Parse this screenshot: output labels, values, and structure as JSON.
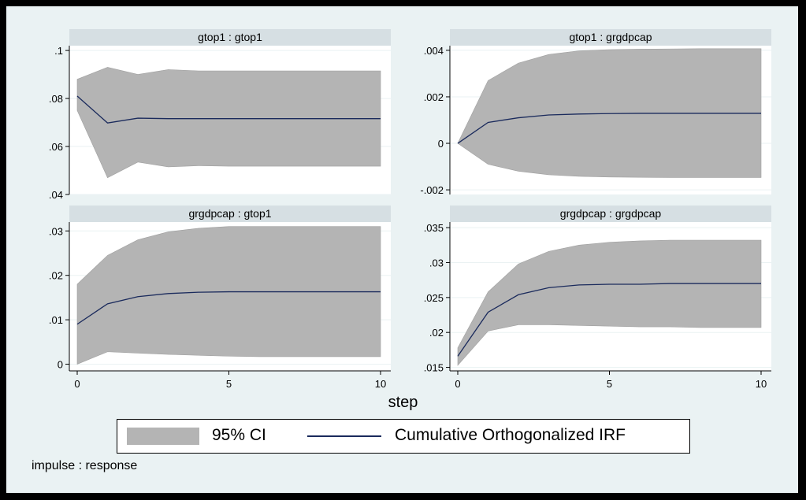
{
  "chart_data": [
    {
      "type": "area",
      "title": "gtop1 : gtop1",
      "x": [
        0,
        1,
        2,
        3,
        4,
        5,
        6,
        7,
        8,
        9,
        10
      ],
      "xticks": [
        0,
        5,
        10
      ],
      "xtick_labels": [
        "0",
        "5",
        "10"
      ],
      "ylim": [
        0.04,
        0.102
      ],
      "yticks": [
        0.04,
        0.06,
        0.08,
        0.1
      ],
      "ytick_labels": [
        ".04",
        ".06",
        ".08",
        ".1"
      ],
      "series": [
        {
          "name": "95% CI upper",
          "values": [
            0.088,
            0.093,
            0.09,
            0.092,
            0.0915,
            0.0915,
            0.0915,
            0.0915,
            0.0915,
            0.0915,
            0.0915
          ]
        },
        {
          "name": "95% CI lower",
          "values": [
            0.075,
            0.047,
            0.0535,
            0.0515,
            0.052,
            0.0518,
            0.0518,
            0.0518,
            0.0518,
            0.0518,
            0.0518
          ]
        },
        {
          "name": "Cumulative Orthogonalized IRF",
          "values": [
            0.081,
            0.0698,
            0.0718,
            0.0716,
            0.0716,
            0.0716,
            0.0716,
            0.0716,
            0.0716,
            0.0716,
            0.0716
          ]
        }
      ]
    },
    {
      "type": "area",
      "title": "gtop1 : grgdpcap",
      "x": [
        0,
        1,
        2,
        3,
        4,
        5,
        6,
        7,
        8,
        9,
        10
      ],
      "xticks": [
        0,
        5,
        10
      ],
      "xtick_labels": [
        "0",
        "5",
        "10"
      ],
      "ylim": [
        -0.0022,
        0.0042
      ],
      "yticks": [
        -0.002,
        0,
        0.002,
        0.004
      ],
      "ytick_labels": [
        "-.002",
        "0",
        ".002",
        ".004"
      ],
      "series": [
        {
          "name": "95% CI upper",
          "values": [
            0,
            0.0027,
            0.00345,
            0.00382,
            0.00398,
            0.00403,
            0.00405,
            0.00406,
            0.00407,
            0.00407,
            0.00407
          ]
        },
        {
          "name": "95% CI lower",
          "values": [
            0,
            -0.0009,
            -0.0012,
            -0.00135,
            -0.00142,
            -0.00145,
            -0.00146,
            -0.00147,
            -0.00147,
            -0.00147,
            -0.00147
          ]
        },
        {
          "name": "Cumulative Orthogonalized IRF",
          "values": [
            0,
            0.0009,
            0.0011,
            0.00122,
            0.00126,
            0.00128,
            0.00129,
            0.00129,
            0.00129,
            0.00129,
            0.00129
          ]
        }
      ]
    },
    {
      "type": "area",
      "title": "grgdpcap : gtop1",
      "x": [
        0,
        1,
        2,
        3,
        4,
        5,
        6,
        7,
        8,
        9,
        10
      ],
      "xticks": [
        0,
        5,
        10
      ],
      "xtick_labels": [
        "0",
        "5",
        "10"
      ],
      "ylim": [
        -0.0015,
        0.032
      ],
      "yticks": [
        0,
        0.01,
        0.02,
        0.03
      ],
      "ytick_labels": [
        "0",
        ".01",
        ".02",
        ".03"
      ],
      "series": [
        {
          "name": "95% CI upper",
          "values": [
            0.018,
            0.0245,
            0.028,
            0.0298,
            0.0306,
            0.031,
            0.031,
            0.031,
            0.031,
            0.031,
            0.031
          ]
        },
        {
          "name": "95% CI lower",
          "values": [
            0,
            0.0028,
            0.0025,
            0.0022,
            0.002,
            0.0018,
            0.0017,
            0.0017,
            0.0017,
            0.0017,
            0.0017
          ]
        },
        {
          "name": "Cumulative Orthogonalized IRF",
          "values": [
            0.009,
            0.0136,
            0.0152,
            0.0159,
            0.0162,
            0.0163,
            0.0163,
            0.0163,
            0.0163,
            0.0163,
            0.0163
          ]
        }
      ]
    },
    {
      "type": "area",
      "title": "grgdpcap : grgdpcap",
      "x": [
        0,
        1,
        2,
        3,
        4,
        5,
        6,
        7,
        8,
        9,
        10
      ],
      "xticks": [
        0,
        5,
        10
      ],
      "xtick_labels": [
        "0",
        "5",
        "10"
      ],
      "ylim": [
        0.0145,
        0.0358
      ],
      "yticks": [
        0.015,
        0.02,
        0.025,
        0.03,
        0.035
      ],
      "ytick_labels": [
        ".015",
        ".02",
        ".025",
        ".03",
        ".035"
      ],
      "series": [
        {
          "name": "95% CI upper",
          "values": [
            0.0178,
            0.0258,
            0.0298,
            0.0316,
            0.0325,
            0.0329,
            0.0331,
            0.0332,
            0.0332,
            0.0332,
            0.0332
          ]
        },
        {
          "name": "95% CI lower",
          "values": [
            0.0153,
            0.0202,
            0.0211,
            0.0211,
            0.021,
            0.0209,
            0.0208,
            0.0208,
            0.0207,
            0.0207,
            0.0207
          ]
        },
        {
          "name": "Cumulative Orthogonalized IRF",
          "values": [
            0.0166,
            0.0229,
            0.0254,
            0.0264,
            0.0268,
            0.0269,
            0.0269,
            0.027,
            0.027,
            0.027,
            0.027
          ]
        }
      ]
    }
  ],
  "xlabel": "step",
  "legend": {
    "ci_label": "95% CI",
    "irf_label": "Cumulative Orthogonalized IRF"
  },
  "note": "impulse : response",
  "colors": {
    "ci_fill": "#b4b4b4",
    "irf_line": "#1a2a5c",
    "background": "#eaf2f3",
    "title_bar": "#d6dfe3"
  }
}
